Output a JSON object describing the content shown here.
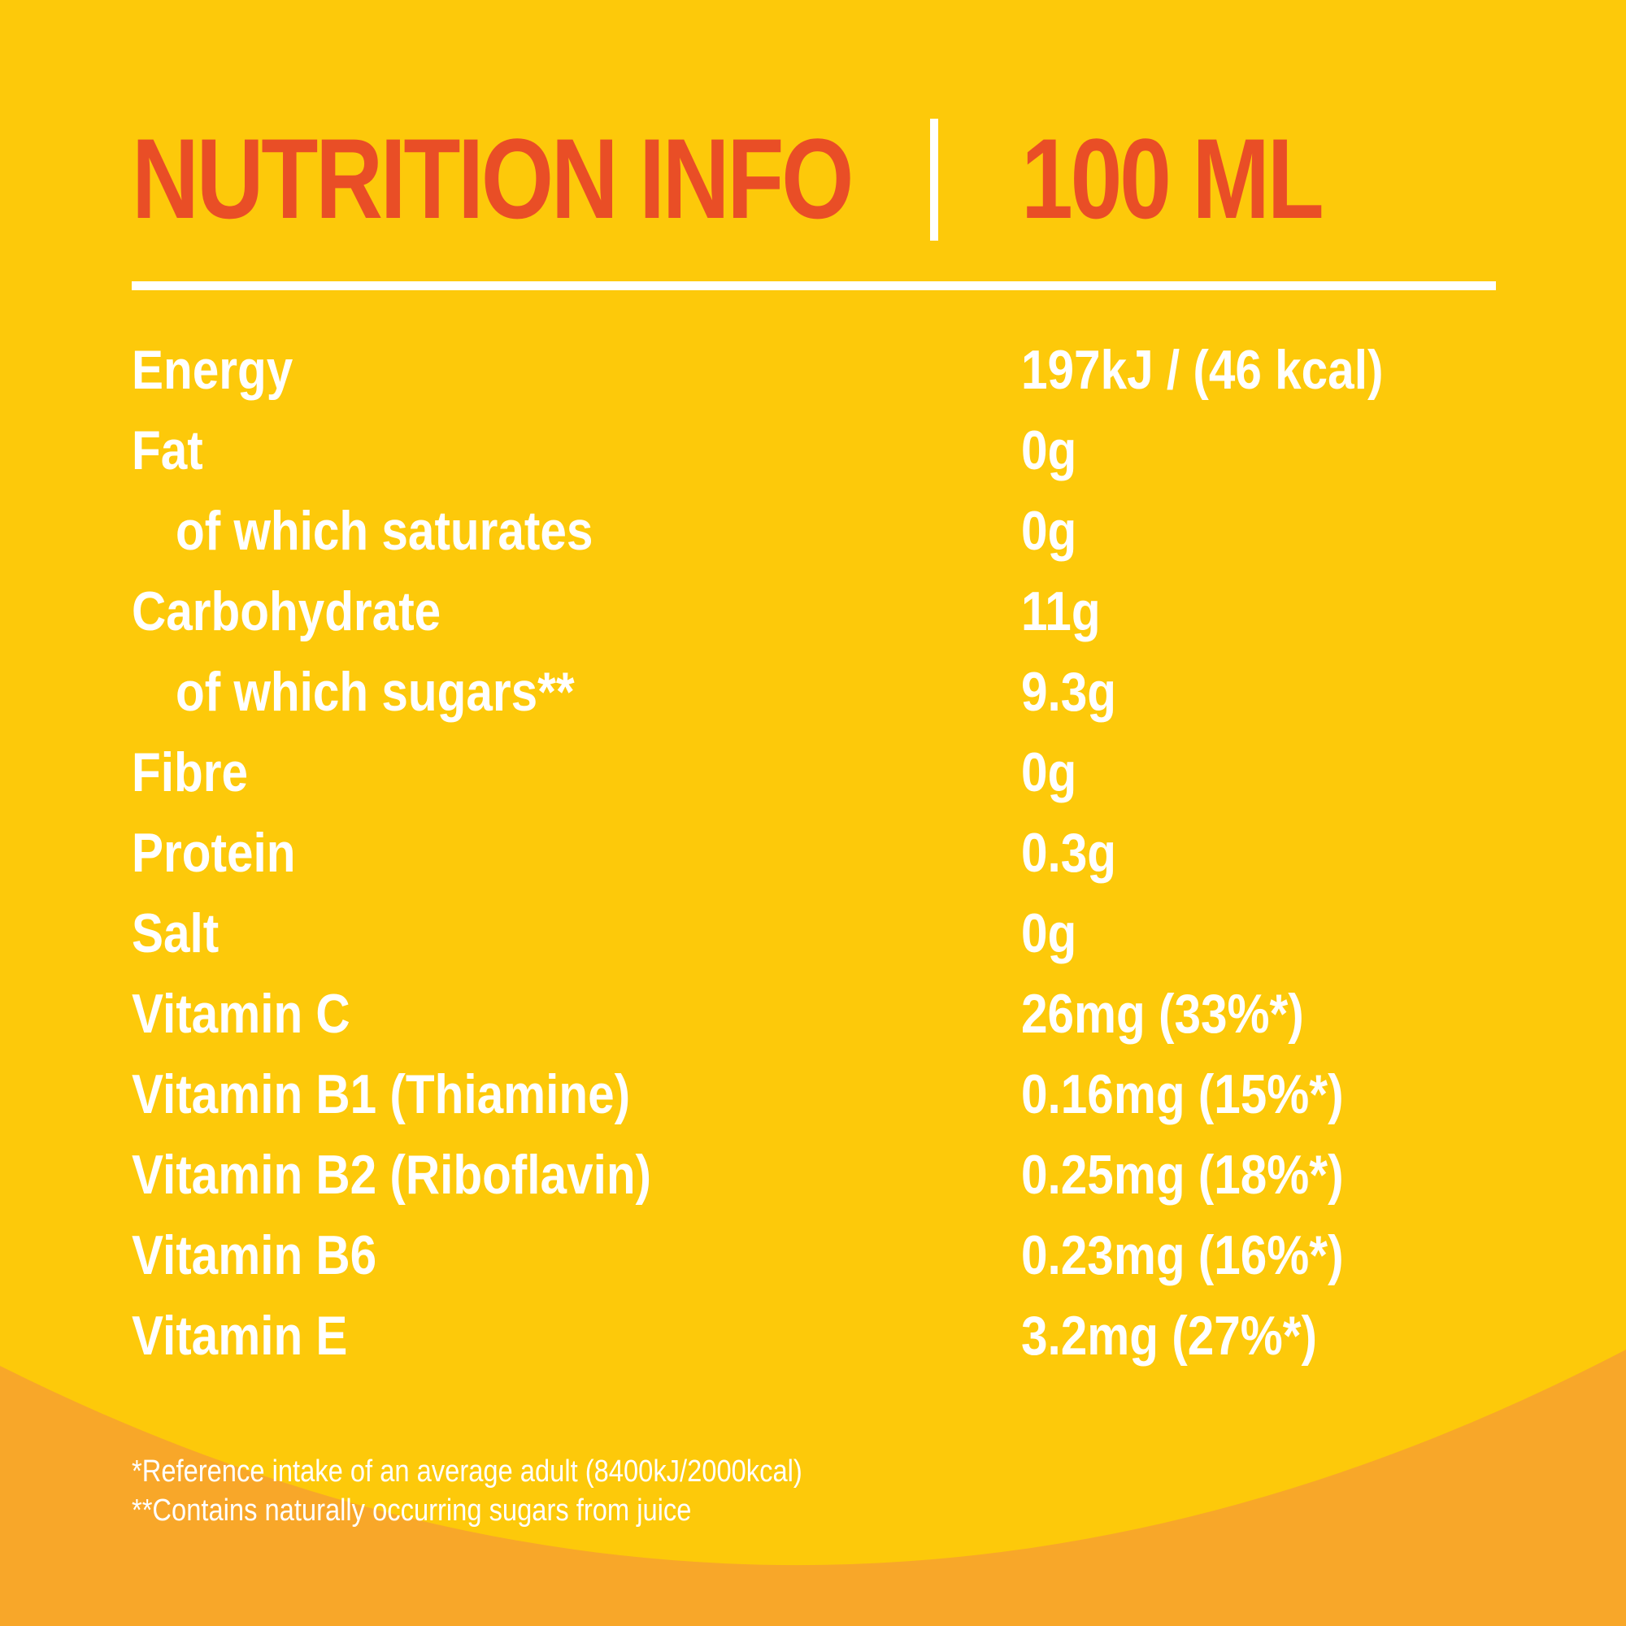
{
  "colors": {
    "background": "#FDC90A",
    "wave": "#F8A729",
    "title": "#E94E26",
    "text": "#FFFFFF"
  },
  "header": {
    "title": "NUTRITION INFO",
    "serving": "100 ML"
  },
  "rows": [
    {
      "label": "Energy",
      "value": "197kJ / (46 kcal)"
    },
    {
      "label": "Fat",
      "value": "0g"
    },
    {
      "label": "of which saturates",
      "value": "0g",
      "sub": true
    },
    {
      "label": "Carbohydrate",
      "value": "11g"
    },
    {
      "label": "of which sugars**",
      "value": "9.3g",
      "sub": true
    },
    {
      "label": "Fibre",
      "value": "0g"
    },
    {
      "label": "Protein",
      "value": "0.3g"
    },
    {
      "label": "Salt",
      "value": "0g"
    },
    {
      "label": "Vitamin C",
      "value": "26mg (33%*)"
    },
    {
      "label": "Vitamin B1 (Thiamine)",
      "value": "0.16mg (15%*)"
    },
    {
      "label": "Vitamin B2 (Riboflavin)",
      "value": "0.25mg (18%*)"
    },
    {
      "label": "Vitamin B6",
      "value": "0.23mg (16%*)"
    },
    {
      "label": "Vitamin E",
      "value": "3.2mg (27%*)"
    }
  ],
  "footnotes": {
    "reference": "*Reference intake of an average adult (8400kJ/2000kcal)",
    "sugars": "**Contains naturally occurring sugars from juice"
  }
}
